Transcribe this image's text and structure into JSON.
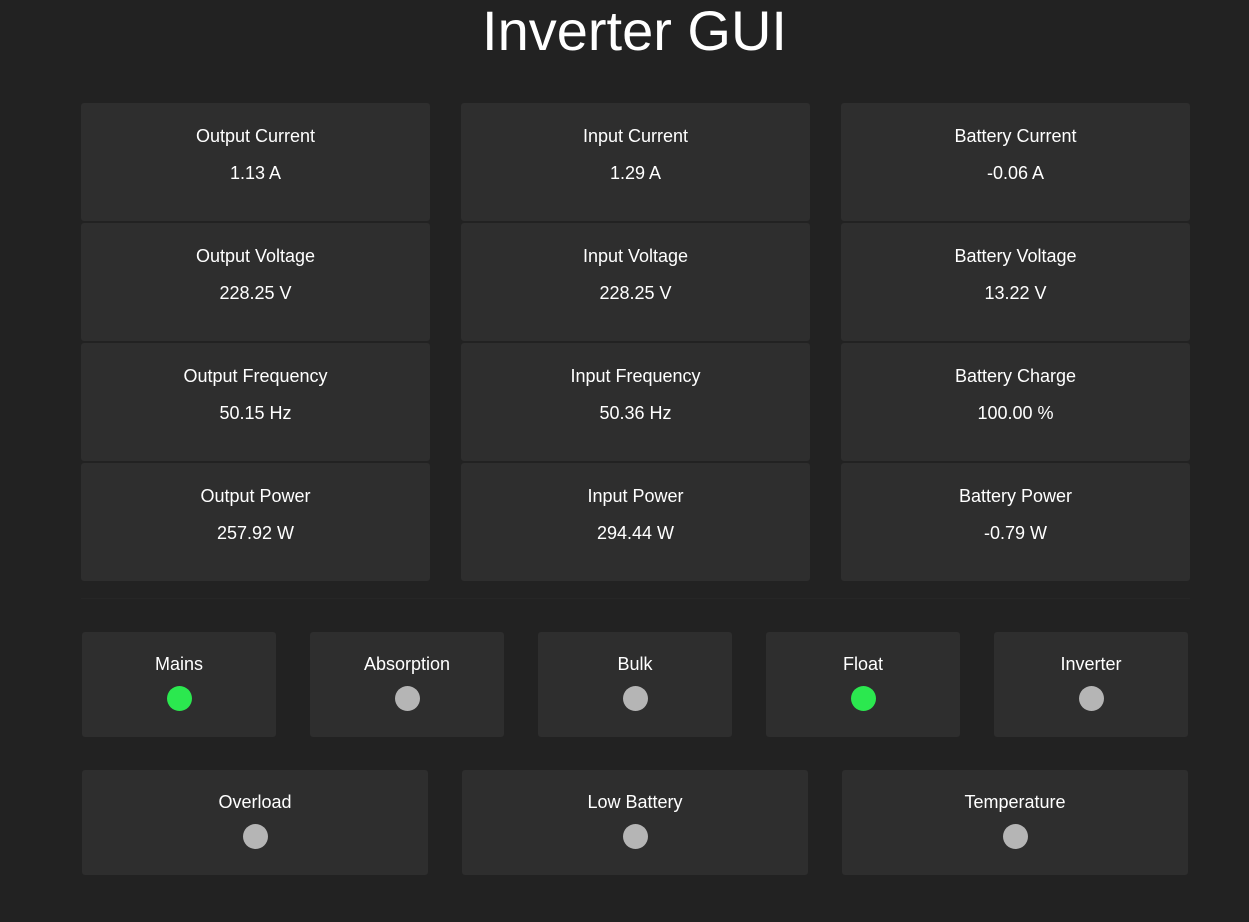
{
  "title": "Inverter GUI",
  "colors": {
    "on": "#2be84f",
    "off": "#b5b5b5"
  },
  "metrics": [
    {
      "label": "Output Current",
      "value": "1.13 A"
    },
    {
      "label": "Input Current",
      "value": "1.29 A"
    },
    {
      "label": "Battery Current",
      "value": "-0.06 A"
    },
    {
      "label": "Output Voltage",
      "value": "228.25 V"
    },
    {
      "label": "Input Voltage",
      "value": "228.25 V"
    },
    {
      "label": "Battery Voltage",
      "value": "13.22 V"
    },
    {
      "label": "Output Frequency",
      "value": "50.15 Hz"
    },
    {
      "label": "Input Frequency",
      "value": "50.36 Hz"
    },
    {
      "label": "Battery Charge",
      "value": "100.00 %"
    },
    {
      "label": "Output Power",
      "value": "257.92 W"
    },
    {
      "label": "Input Power",
      "value": "294.44 W"
    },
    {
      "label": "Battery Power",
      "value": "-0.79 W"
    }
  ],
  "status_row1": [
    {
      "label": "Mains",
      "on": true
    },
    {
      "label": "Absorption",
      "on": false
    },
    {
      "label": "Bulk",
      "on": false
    },
    {
      "label": "Float",
      "on": true
    },
    {
      "label": "Inverter",
      "on": false
    }
  ],
  "status_row2": [
    {
      "label": "Overload",
      "on": false
    },
    {
      "label": "Low Battery",
      "on": false
    },
    {
      "label": "Temperature",
      "on": false
    }
  ]
}
